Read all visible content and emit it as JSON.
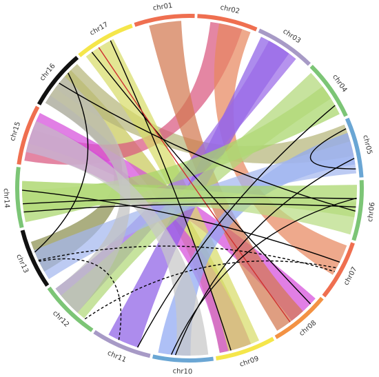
{
  "diagram": {
    "segments": [
      {
        "id": "chr01",
        "label": "chr01",
        "color": "#ef6f50"
      },
      {
        "id": "chr02",
        "label": "chr02",
        "color": "#ef6f50"
      },
      {
        "id": "chr03",
        "label": "chr03",
        "color": "#a79ac6"
      },
      {
        "id": "chr04",
        "label": "chr04",
        "color": "#7cc576"
      },
      {
        "id": "chr05",
        "label": "chr05",
        "color": "#6aa6d4"
      },
      {
        "id": "chr06",
        "label": "chr06",
        "color": "#7cc576"
      },
      {
        "id": "chr07",
        "label": "chr07",
        "color": "#ef6f50"
      },
      {
        "id": "chr08",
        "label": "chr08",
        "color": "#f39243"
      },
      {
        "id": "chr09",
        "label": "chr09",
        "color": "#f5e64a"
      },
      {
        "id": "chr10",
        "label": "chr10",
        "color": "#6aa6d4"
      },
      {
        "id": "chr11",
        "label": "chr11",
        "color": "#a79ac6"
      },
      {
        "id": "chr12",
        "label": "chr12",
        "color": "#7cc576"
      },
      {
        "id": "chr13",
        "label": "chr13",
        "color": "#111111"
      },
      {
        "id": "chr14",
        "label": "chr14",
        "color": "#7cc576"
      },
      {
        "id": "chr15",
        "label": "chr15",
        "color": "#ef6f50"
      },
      {
        "id": "chr16",
        "label": "chr16",
        "color": "#111111"
      },
      {
        "id": "chr17",
        "label": "chr17",
        "color": "#f5e64a"
      }
    ],
    "ribbons": [
      {
        "from": "chr16",
        "to": "chr13",
        "color": "#8b8f4f"
      },
      {
        "from": "chr16",
        "to": "chr09",
        "color": "#c9c95a"
      },
      {
        "from": "chr16",
        "to": "chr05",
        "color": "#b5b57a"
      },
      {
        "from": "chr15",
        "to": "chr02",
        "color": "#d9577f"
      },
      {
        "from": "chr15",
        "to": "chr09",
        "color": "#d64ddb"
      },
      {
        "from": "chr15",
        "to": "chr08",
        "color": "#d64ddb"
      },
      {
        "from": "chr17",
        "to": "chr09",
        "color": "#d8dd6a"
      },
      {
        "from": "chr01",
        "to": "chr08",
        "color": "#d27850"
      },
      {
        "from": "chr02",
        "to": "chr07",
        "color": "#e88860"
      },
      {
        "from": "chr03",
        "to": "chr11",
        "color": "#8e5fe6"
      },
      {
        "from": "chr03",
        "to": "chr12",
        "color": "#9a6ae8"
      },
      {
        "from": "chr04",
        "to": "chr14",
        "color": "#a8d56a"
      },
      {
        "from": "chr04",
        "to": "chr12",
        "color": "#b2d879"
      },
      {
        "from": "chr05",
        "to": "chr10",
        "color": "#8fa8f2"
      },
      {
        "from": "chr05",
        "to": "chr13",
        "color": "#a4b7ee"
      },
      {
        "from": "chr06",
        "to": "chr14",
        "color": "#a8d56a"
      },
      {
        "from": "chr14",
        "to": "chr06",
        "color": "#b8dd84"
      },
      {
        "from": "chr12",
        "to": "chr16",
        "color": "#c0c0c0"
      },
      {
        "from": "chr10",
        "to": "chr15",
        "color": "#c8c8c8"
      }
    ],
    "links": [
      {
        "from": "chr17",
        "to": "chr08",
        "style": "solid",
        "color": "#000000"
      },
      {
        "from": "chr17",
        "to": "chr09",
        "style": "solid",
        "color": "#000000"
      },
      {
        "from": "chr17",
        "to": "chr08",
        "style": "solid",
        "color": "#d03030"
      },
      {
        "from": "chr16",
        "to": "chr13",
        "style": "solid",
        "color": "#000000"
      },
      {
        "from": "chr16",
        "to": "chr06",
        "style": "solid",
        "color": "#000000"
      },
      {
        "from": "chr14",
        "to": "chr06",
        "style": "solid",
        "color": "#000000"
      },
      {
        "from": "chr14",
        "to": "chr07",
        "style": "solid",
        "color": "#000000"
      },
      {
        "from": "chr14",
        "to": "chr06",
        "style": "solid",
        "color": "#000000"
      },
      {
        "from": "chr04",
        "to": "chr11",
        "style": "solid",
        "color": "#000000"
      },
      {
        "from": "chr05",
        "to": "chr05",
        "style": "solid",
        "color": "#000000"
      },
      {
        "from": "chr06",
        "to": "chr10",
        "style": "solid",
        "color": "#000000"
      },
      {
        "from": "chr05",
        "to": "chr10",
        "style": "solid",
        "color": "#000000"
      },
      {
        "from": "chr13",
        "to": "chr07",
        "style": "dashed",
        "color": "#000000"
      },
      {
        "from": "chr12",
        "to": "chr07",
        "style": "dashed",
        "color": "#000000"
      },
      {
        "from": "chr11",
        "to": "chr13",
        "style": "dashed",
        "color": "#000000"
      }
    ]
  }
}
